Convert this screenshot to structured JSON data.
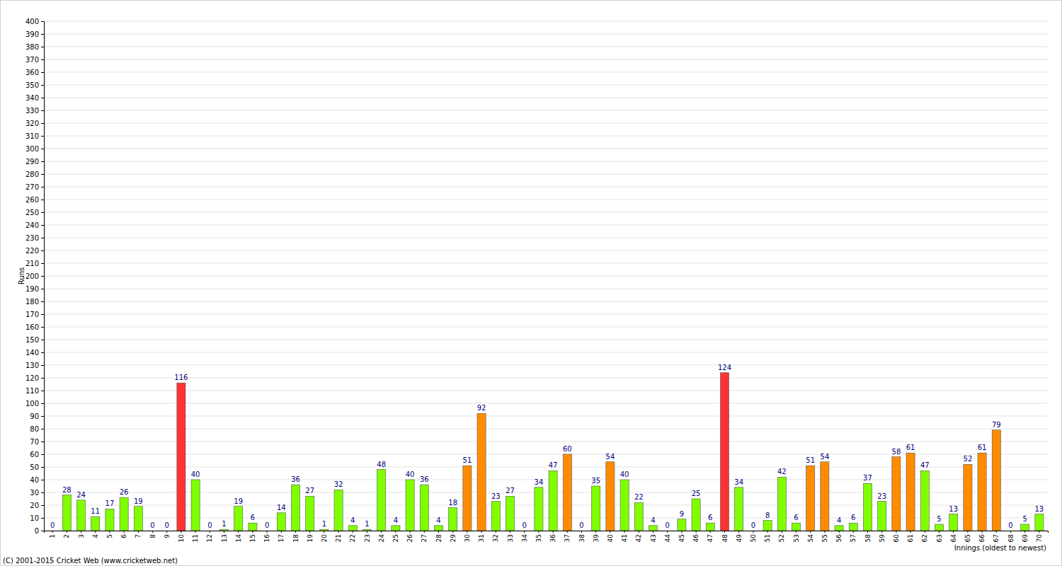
{
  "chart_data": {
    "type": "bar",
    "y_label": "Runs",
    "x_label": "Innings (oldest to newest)",
    "annotations": [
      "(C) 2001-2015 Cricket Web (www.cricketweb.net)"
    ],
    "categories": [
      "1",
      "2",
      "3",
      "4",
      "5",
      "6",
      "7",
      "8",
      "9",
      "10",
      "11",
      "12",
      "13",
      "14",
      "15",
      "16",
      "17",
      "18",
      "19",
      "20",
      "21",
      "22",
      "23",
      "24",
      "25",
      "26",
      "27",
      "28",
      "29",
      "30",
      "31",
      "32",
      "33",
      "34",
      "35",
      "36",
      "37",
      "38",
      "39",
      "40",
      "41",
      "42",
      "43",
      "44",
      "45",
      "46",
      "47",
      "48",
      "49",
      "50",
      "51",
      "52",
      "53",
      "54",
      "55",
      "56",
      "57",
      "58",
      "59",
      "60",
      "61",
      "62",
      "63",
      "64",
      "65",
      "66",
      "67",
      "68",
      "69",
      "70"
    ],
    "values": [
      0,
      28,
      24,
      11,
      17,
      26,
      19,
      0,
      0,
      116,
      40,
      0,
      1,
      19,
      6,
      0,
      14,
      36,
      27,
      1,
      32,
      4,
      1,
      48,
      4,
      40,
      36,
      4,
      18,
      51,
      92,
      23,
      27,
      0,
      34,
      47,
      60,
      0,
      35,
      54,
      40,
      22,
      4,
      0,
      9,
      25,
      6,
      124,
      34,
      0,
      8,
      42,
      6,
      51,
      54,
      4,
      6,
      37,
      23,
      58,
      61,
      47,
      5,
      13,
      52,
      61,
      79,
      0,
      5,
      13
    ],
    "colors": [
      "#80ff00",
      "#80ff00",
      "#80ff00",
      "#80ff00",
      "#80ff00",
      "#80ff00",
      "#80ff00",
      "#80ff00",
      "#80ff00",
      "#ff3333",
      "#80ff00",
      "#80ff00",
      "#80ff00",
      "#80ff00",
      "#80ff00",
      "#80ff00",
      "#80ff00",
      "#80ff00",
      "#80ff00",
      "#80ff00",
      "#80ff00",
      "#80ff00",
      "#80ff00",
      "#80ff00",
      "#80ff00",
      "#80ff00",
      "#80ff00",
      "#80ff00",
      "#80ff00",
      "#ff8c00",
      "#ff8c00",
      "#80ff00",
      "#80ff00",
      "#80ff00",
      "#80ff00",
      "#80ff00",
      "#ff8c00",
      "#80ff00",
      "#80ff00",
      "#ff8c00",
      "#80ff00",
      "#80ff00",
      "#80ff00",
      "#80ff00",
      "#80ff00",
      "#80ff00",
      "#80ff00",
      "#ff3333",
      "#80ff00",
      "#80ff00",
      "#80ff00",
      "#80ff00",
      "#80ff00",
      "#ff8c00",
      "#ff8c00",
      "#80ff00",
      "#80ff00",
      "#80ff00",
      "#80ff00",
      "#ff8c00",
      "#ff8c00",
      "#80ff00",
      "#80ff00",
      "#80ff00",
      "#ff8c00",
      "#ff8c00",
      "#ff8c00",
      "#80ff00",
      "#80ff00",
      "#80ff00"
    ],
    "ylim": [
      0,
      400
    ],
    "yticks": [
      0,
      10,
      20,
      30,
      40,
      50,
      60,
      70,
      80,
      90,
      100,
      110,
      120,
      130,
      140,
      150,
      160,
      170,
      180,
      190,
      200,
      210,
      220,
      230,
      240,
      250,
      260,
      270,
      280,
      290,
      300,
      310,
      320,
      330,
      340,
      350,
      360,
      370,
      380,
      390,
      400
    ],
    "grid": true,
    "data_labels": true
  }
}
